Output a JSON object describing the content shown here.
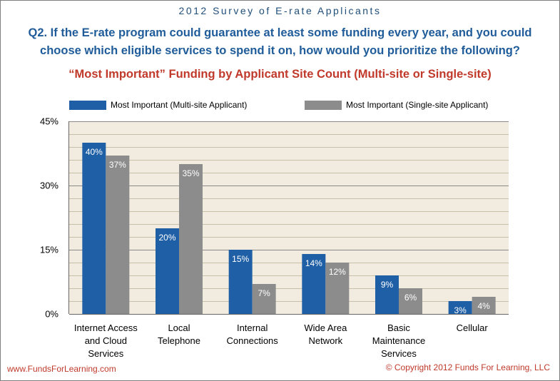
{
  "banner": "2012 Survey of E-rate Applicants",
  "question_line1": "Q2. If the E-rate program could guarantee at least some funding every year, and you could",
  "question_line2": "choose which eligible services to spend it on, how would you prioritize the following?",
  "footer_left": "www.FundsForLearning.com",
  "footer_right": "© Copyright 2012 Funds For Learning, LLC",
  "chart_data": {
    "type": "bar",
    "title": "“Most Important” Funding by Applicant Site Count (Multi-site or Single-site)",
    "categories": [
      [
        "Internet Access",
        "and Cloud",
        "Services"
      ],
      [
        "Local",
        "Telephone"
      ],
      [
        "Internal",
        "Connections"
      ],
      [
        "Wide Area",
        "Network"
      ],
      [
        "Basic",
        "Maintenance",
        "Services"
      ],
      [
        "Cellular"
      ]
    ],
    "series": [
      {
        "name": "Most Important (Multi-site Applicant)",
        "color": "#1f5fa6",
        "values": [
          40,
          20,
          15,
          14,
          9,
          3
        ],
        "labels": [
          "40%",
          "20%",
          "15%",
          "14%",
          "9%",
          "3%"
        ]
      },
      {
        "name": "Most Important (Single-site Applicant)",
        "color": "#8c8c8c",
        "values": [
          37,
          35,
          7,
          12,
          6,
          4
        ],
        "labels": [
          "37%",
          "35%",
          "7%",
          "12%",
          "6%",
          "4%"
        ]
      }
    ],
    "ylim": [
      0,
      45
    ],
    "yticks": [
      0,
      15,
      30,
      45
    ],
    "ytick_labels": [
      "0%",
      "15%",
      "30%",
      "45%"
    ],
    "grid": true,
    "legend_position": "top",
    "plot_background": "#f2ece0",
    "gridline_color": "#8a8a8a"
  }
}
